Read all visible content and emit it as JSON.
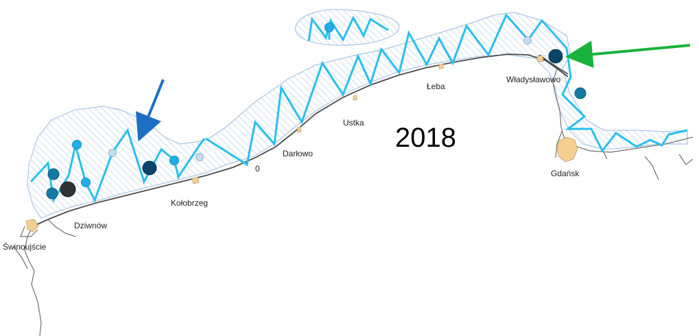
{
  "map": {
    "year": "2018",
    "places": {
      "swinoujscie": "Świnoujście",
      "dziwnow": "Dziwnów",
      "kolobrzeg": "Kołobrzeg",
      "darlowo": "Darłowo",
      "zero": "0",
      "ustka": "Ustka",
      "leba": "Łeba",
      "wladyslawowo": "Władysławowo",
      "gdansk": "Gdańsk"
    },
    "colors": {
      "zone_hatch": "#a9c4e6",
      "transect_line": "#27bfee",
      "marker_light": "#c5def1",
      "marker_cyan": "#20aee5",
      "marker_teal": "#137aa3",
      "marker_navy": "#0a4468",
      "marker_dark": "#2f3337",
      "town_fill": "#f5cf91",
      "blue_arrow": "#1e6fc3",
      "green_arrow": "#19b23a"
    },
    "arrows": [
      {
        "name": "blue-arrow",
        "color": "blue"
      },
      {
        "name": "green-arrow",
        "color": "green"
      }
    ]
  }
}
